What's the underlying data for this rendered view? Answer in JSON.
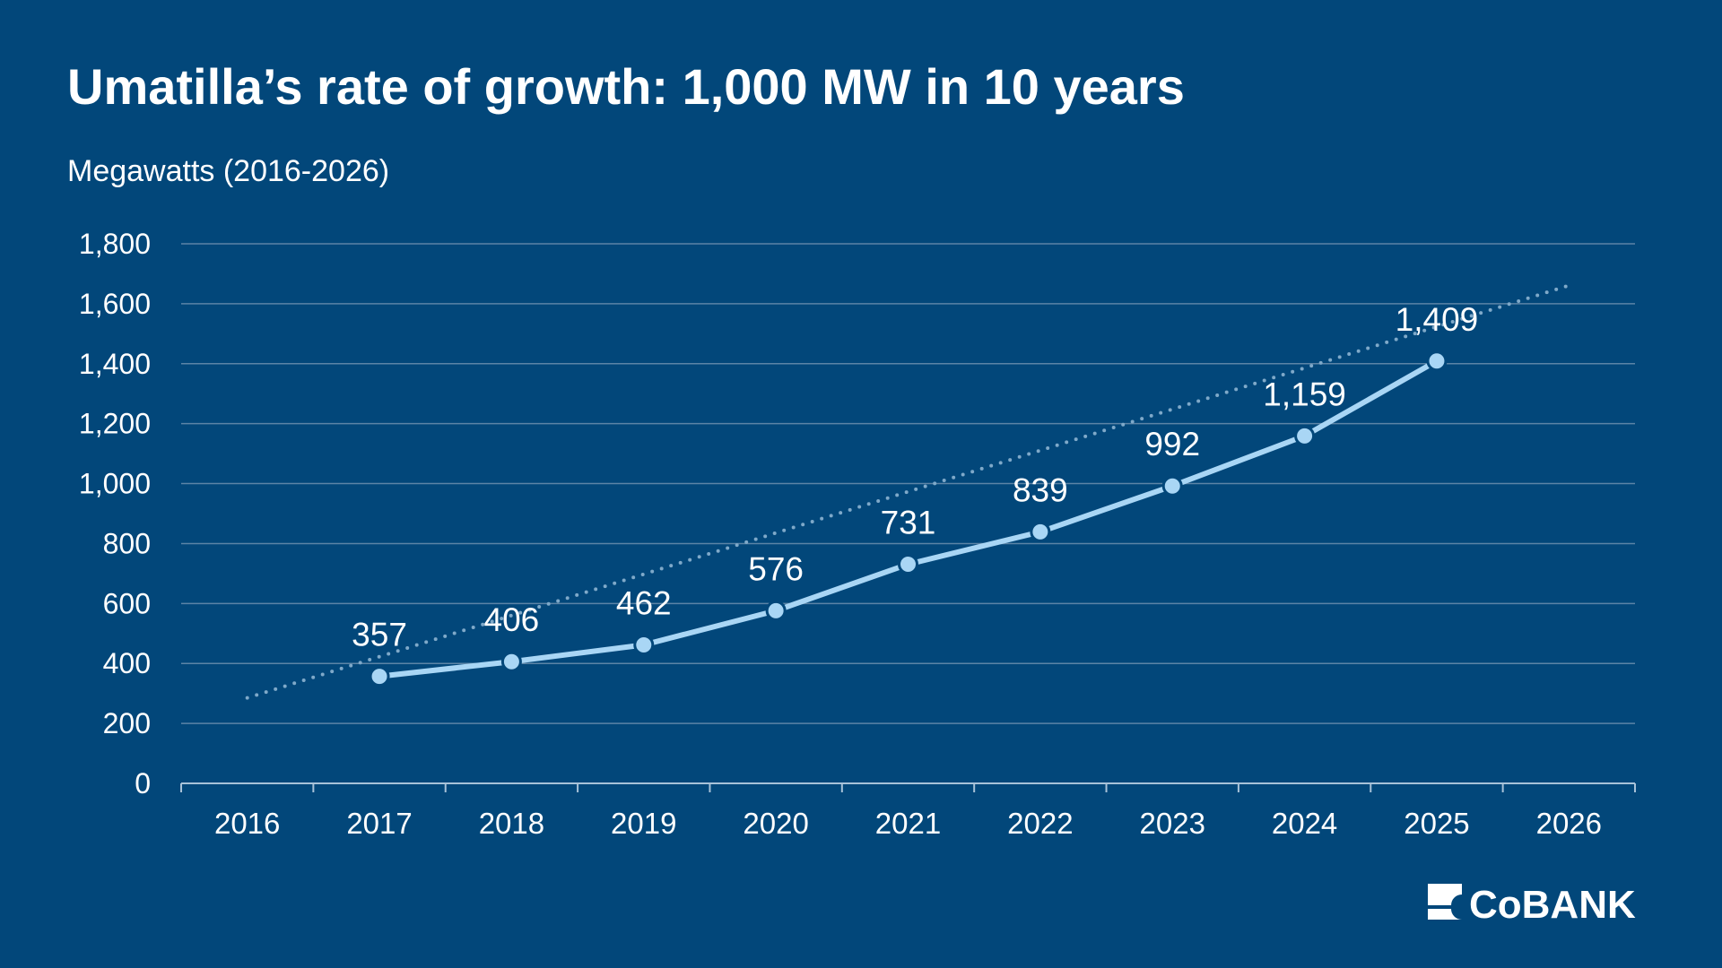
{
  "chart_data": {
    "type": "line",
    "title": "Umatilla’s rate of growth: 1,000 MW in 10 years",
    "subtitle": "Megawatts (2016-2026)",
    "x": [
      2016,
      2017,
      2018,
      2019,
      2020,
      2021,
      2022,
      2023,
      2024,
      2025,
      2026
    ],
    "series": [
      {
        "color": "#a9d6f5",
        "values": [
          null,
          357,
          406,
          462,
          576,
          731,
          839,
          992,
          1159,
          1409,
          null
        ],
        "value_labels": [
          null,
          "357",
          "406",
          "462",
          "576",
          "731",
          "839",
          "992",
          "1,159",
          "1,409",
          null
        ]
      }
    ],
    "trend": {
      "x": [
        2016,
        2026
      ],
      "values": [
        285,
        1661
      ],
      "color": "#7fa9c9",
      "style": "dotted"
    },
    "ylim": [
      0,
      1800
    ],
    "yticks": [
      0,
      200,
      400,
      600,
      800,
      {
        "value": 1000,
        "label": "1,000"
      },
      {
        "value": 1200,
        "label": "1,200"
      },
      {
        "value": 1400,
        "label": "1,400"
      },
      {
        "value": 1600,
        "label": "1,600"
      },
      {
        "value": 1800,
        "label": "1,800"
      }
    ],
    "grid": true,
    "logo": "CoBANK"
  }
}
